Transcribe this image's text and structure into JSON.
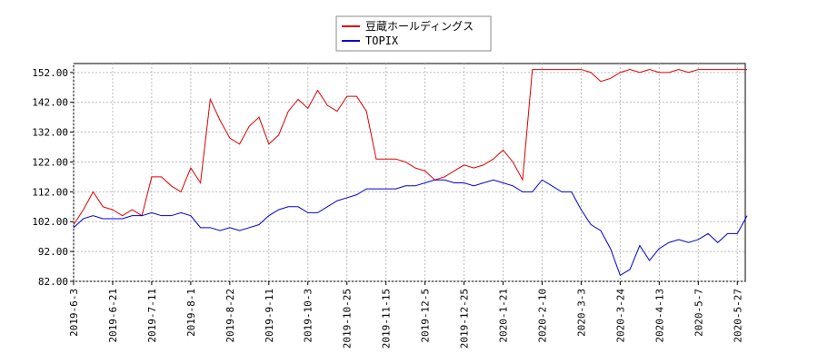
{
  "chart_data": {
    "type": "line",
    "categories": [
      "2019-6-3",
      null,
      null,
      null,
      "2019-6-21",
      null,
      null,
      null,
      "2019-7-11",
      null,
      null,
      null,
      "2019-8-1",
      null,
      null,
      null,
      "2019-8-22",
      null,
      null,
      null,
      "2019-9-11",
      null,
      null,
      null,
      "2019-10-3",
      null,
      null,
      null,
      "2019-10-25",
      null,
      null,
      null,
      "2019-11-15",
      null,
      null,
      null,
      "2019-12-5",
      null,
      null,
      null,
      "2019-12-25",
      null,
      null,
      null,
      "2020-1-21",
      null,
      null,
      null,
      "2020-2-10",
      null,
      null,
      null,
      "2020-3-3",
      null,
      null,
      null,
      "2020-3-24",
      null,
      null,
      null,
      "2020-4-13",
      null,
      null,
      null,
      "2020-5-7",
      null,
      null,
      null,
      "2020-5-27",
      null
    ],
    "series": [
      {
        "name": "豆蔵ホールディングス",
        "color": "#dd0000",
        "values": [
          101,
          106,
          112,
          107,
          106,
          104,
          106,
          104,
          117,
          117,
          114,
          112,
          120,
          115,
          143,
          136,
          130,
          128,
          134,
          137,
          128,
          131,
          139,
          143,
          140,
          146,
          141,
          139,
          144,
          144,
          139,
          123,
          123,
          123,
          122,
          120,
          119,
          116,
          117,
          119,
          121,
          120,
          121,
          123,
          126,
          122,
          116,
          153,
          153,
          153,
          153,
          153,
          153,
          152,
          149,
          150,
          152,
          153,
          152,
          153,
          152,
          152,
          153,
          152,
          153,
          153,
          153,
          153,
          153,
          153
        ]
      },
      {
        "name": "TOPIX",
        "color": "#0000cc",
        "values": [
          100,
          103,
          104,
          103,
          103,
          103,
          104,
          104,
          105,
          104,
          104,
          105,
          104,
          100,
          100,
          99,
          100,
          99,
          100,
          101,
          104,
          106,
          107,
          107,
          105,
          105,
          107,
          109,
          110,
          111,
          113,
          113,
          113,
          113,
          114,
          114,
          115,
          116,
          116,
          115,
          115,
          114,
          115,
          116,
          115,
          114,
          112,
          112,
          116,
          114,
          112,
          112,
          106,
          101,
          99,
          93,
          84,
          86,
          94,
          89,
          93,
          95,
          96,
          95,
          96,
          98,
          95,
          98,
          98,
          104
        ]
      }
    ],
    "ylim": [
      82,
      155
    ],
    "yticks": [
      {
        "value": 82,
        "label": "82.00"
      },
      {
        "value": 92,
        "label": "92.00"
      },
      {
        "value": 102,
        "label": "102.00"
      },
      {
        "value": 112,
        "label": "112.00"
      },
      {
        "value": 122,
        "label": "122.00"
      },
      {
        "value": 132,
        "label": "132.00"
      },
      {
        "value": 142,
        "label": "142.00"
      },
      {
        "value": 152,
        "label": "152.00"
      }
    ],
    "grid": true,
    "legend": "top"
  }
}
